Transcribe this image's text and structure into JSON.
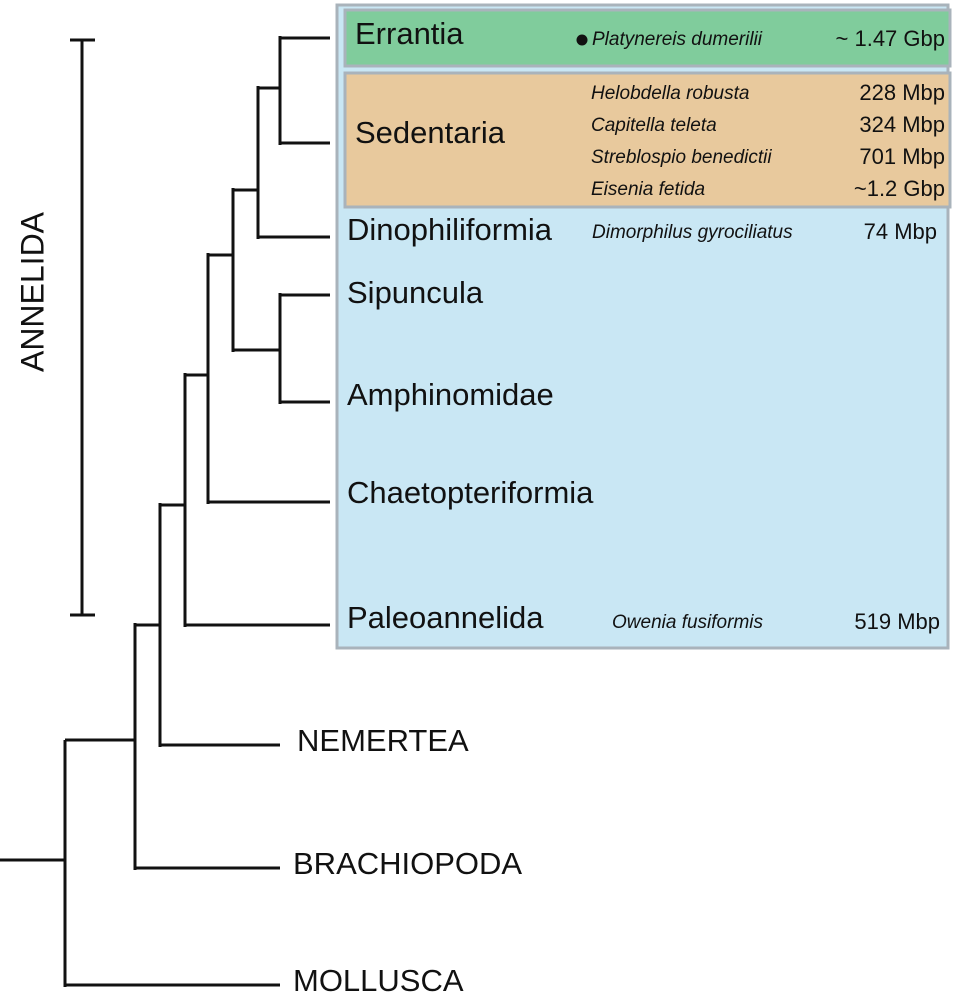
{
  "clade_label": "ANNELIDA",
  "taxa": [
    {
      "name": "Errantia",
      "species": [
        {
          "name": "Platynereis dumerilii",
          "genome_size": "~ 1.47 Gbp"
        }
      ]
    },
    {
      "name": "Sedentaria",
      "species": [
        {
          "name": "Helobdella robusta",
          "genome_size": "228 Mbp"
        },
        {
          "name": "Capitella teleta",
          "genome_size": "324 Mbp"
        },
        {
          "name": "Streblospio benedictii",
          "genome_size": "701 Mbp"
        },
        {
          "name": "Eisenia fetida",
          "genome_size": "~1.2 Gbp"
        }
      ]
    },
    {
      "name": "Dinophiliformia",
      "species": [
        {
          "name": "Dimorphilus gyrociliatus",
          "genome_size": "74 Mbp"
        }
      ]
    },
    {
      "name": "Sipuncula"
    },
    {
      "name": "Amphinomidae"
    },
    {
      "name": "Chaetopteriformia"
    },
    {
      "name": "Paleoannelida",
      "species": [
        {
          "name": "Owenia fusiformis",
          "genome_size": "519 Mbp"
        }
      ]
    }
  ],
  "outgroups": [
    "NEMERTEA",
    "BRACHIOPODA",
    "MOLLUSCA"
  ]
}
